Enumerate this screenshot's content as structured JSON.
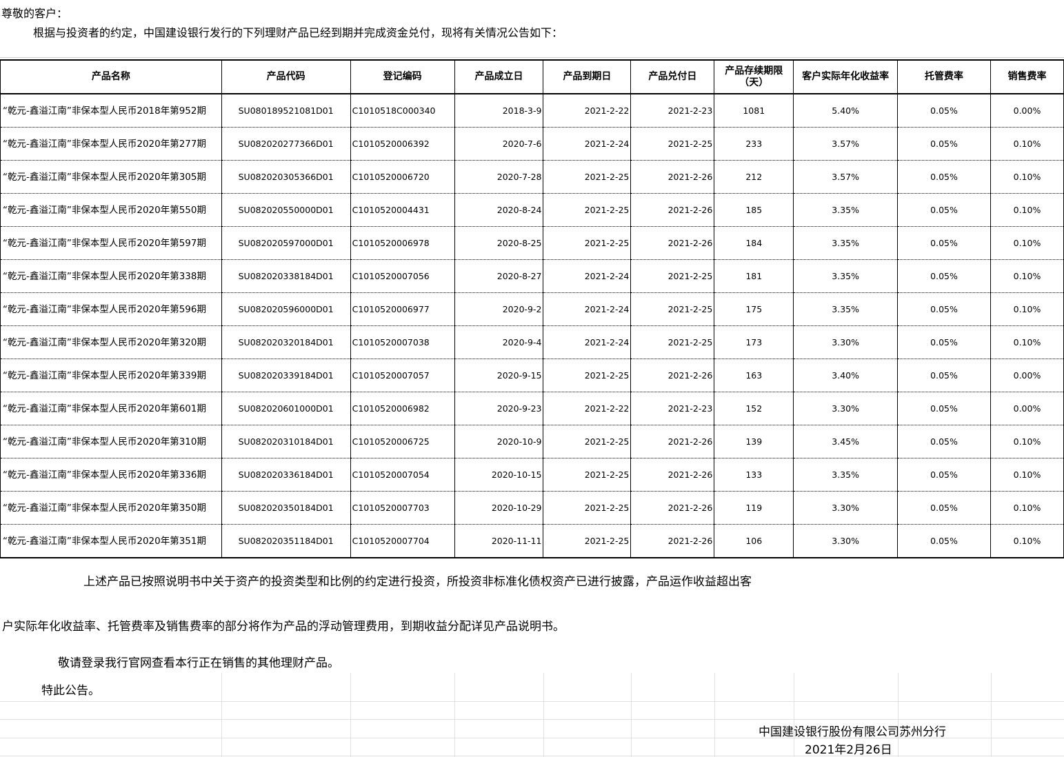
{
  "greeting": "尊敬的客户：",
  "intro": "根据与投资者的约定，中国建设银行发行的下列理财产品已经到期并完成资金兑付，现将有关情况公告如下：",
  "table": {
    "headers": [
      "产品名称",
      "产品代码",
      "登记编码",
      "产品成立日",
      "产品到期日",
      "产品兑付日",
      "产品存续期限（天）",
      "客户实际年化收益率",
      "托管费率",
      "销售费率"
    ],
    "rows": [
      [
        "“乾元-鑫溢江南”非保本型人民币2018年第952期",
        "SU080189521081D01",
        "C1010518C000340",
        "2018-3-9",
        "2021-2-22",
        "2021-2-23",
        "1081",
        "5.40%",
        "0.05%",
        "0.00%"
      ],
      [
        "“乾元-鑫溢江南”非保本型人民币2020年第277期",
        "SU082020277366D01",
        "C1010520006392",
        "2020-7-6",
        "2021-2-24",
        "2021-2-25",
        "233",
        "3.57%",
        "0.05%",
        "0.10%"
      ],
      [
        "“乾元-鑫溢江南”非保本型人民币2020年第305期",
        "SU082020305366D01",
        "C1010520006720",
        "2020-7-28",
        "2021-2-25",
        "2021-2-26",
        "212",
        "3.57%",
        "0.05%",
        "0.10%"
      ],
      [
        "“乾元-鑫溢江南”非保本型人民币2020年第550期",
        "SU082020550000D01",
        "C1010520004431",
        "2020-8-24",
        "2021-2-25",
        "2021-2-26",
        "185",
        "3.35%",
        "0.05%",
        "0.10%"
      ],
      [
        "“乾元-鑫溢江南”非保本型人民币2020年第597期",
        "SU082020597000D01",
        "C1010520006978",
        "2020-8-25",
        "2021-2-25",
        "2021-2-26",
        "184",
        "3.35%",
        "0.05%",
        "0.10%"
      ],
      [
        "“乾元-鑫溢江南”非保本型人民币2020年第338期",
        "SU082020338184D01",
        "C1010520007056",
        "2020-8-27",
        "2021-2-24",
        "2021-2-25",
        "181",
        "3.35%",
        "0.05%",
        "0.10%"
      ],
      [
        "“乾元-鑫溢江南”非保本型人民币2020年第596期",
        "SU082020596000D01",
        "C1010520006977",
        "2020-9-2",
        "2021-2-24",
        "2021-2-25",
        "175",
        "3.35%",
        "0.05%",
        "0.10%"
      ],
      [
        "“乾元-鑫溢江南”非保本型人民币2020年第320期",
        "SU082020320184D01",
        "C1010520007038",
        "2020-9-4",
        "2021-2-24",
        "2021-2-25",
        "173",
        "3.30%",
        "0.05%",
        "0.10%"
      ],
      [
        "“乾元-鑫溢江南”非保本型人民币2020年第339期",
        "SU082020339184D01",
        "C1010520007057",
        "2020-9-15",
        "2021-2-25",
        "2021-2-26",
        "163",
        "3.40%",
        "0.05%",
        "0.00%"
      ],
      [
        "“乾元-鑫溢江南”非保本型人民币2020年第601期",
        "SU082020601000D01",
        "C1010520006982",
        "2020-9-23",
        "2021-2-22",
        "2021-2-23",
        "152",
        "3.30%",
        "0.05%",
        "0.00%"
      ],
      [
        "“乾元-鑫溢江南”非保本型人民币2020年第310期",
        "SU082020310184D01",
        "C1010520006725",
        "2020-10-9",
        "2021-2-25",
        "2021-2-26",
        "139",
        "3.45%",
        "0.05%",
        "0.10%"
      ],
      [
        "“乾元-鑫溢江南”非保本型人民币2020年第336期",
        "SU082020336184D01",
        "C1010520007054",
        "2020-10-15",
        "2021-2-25",
        "2021-2-26",
        "133",
        "3.35%",
        "0.05%",
        "0.10%"
      ],
      [
        "“乾元-鑫溢江南”非保本型人民币2020年第350期",
        "SU082020350184D01",
        "C1010520007703",
        "2020-10-29",
        "2021-2-25",
        "2021-2-26",
        "119",
        "3.30%",
        "0.05%",
        "0.10%"
      ],
      [
        "“乾元-鑫溢江南”非保本型人民币2020年第351期",
        "SU082020351184D01",
        "C1010520007704",
        "2020-11-11",
        "2021-2-25",
        "2021-2-26",
        "106",
        "3.30%",
        "0.05%",
        "0.10%"
      ]
    ]
  },
  "footer": {
    "para1_line1": "上述产品已按照说明书中关于资产的投资类型和比例的约定进行投资，所投资非标准化债权资产已进行披露，产品运作收益超出客",
    "para1_line2": "户实际年化收益率、托管费率及销售费率的部分将作为产品的浮动管理费用，到期收益分配详见产品说明书。",
    "para2": "敬请登录我行官网查看本行正在销售的其他理财产品。",
    "closing": "特此公告。",
    "signature": "中国建设银行股份有限公司苏州分行",
    "date": "2021年2月26日"
  }
}
